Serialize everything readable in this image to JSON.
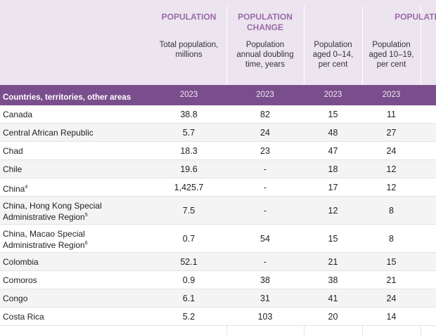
{
  "table": {
    "groups": [
      [
        "POPULATION"
      ],
      [
        "POPULATION",
        "CHANGE"
      ],
      [
        "POPULATION"
      ]
    ],
    "subheaders": [
      [
        "Total population,",
        "millions"
      ],
      [
        "Population",
        "annual doubling",
        "time, years"
      ],
      [
        "Population",
        "aged 0–14,",
        "per cent"
      ],
      [
        "Population",
        "aged 10–19,",
        "per cent"
      ]
    ],
    "row_header": "Countries, territories, other areas",
    "years": [
      "2023",
      "2023",
      "2023",
      "2023"
    ],
    "rows": [
      {
        "name": [
          "Canada"
        ],
        "values": [
          38.8,
          82,
          15,
          11
        ]
      },
      {
        "name": [
          "Central African Republic"
        ],
        "values": [
          5.7,
          24,
          48,
          27
        ]
      },
      {
        "name": [
          "Chad"
        ],
        "values": [
          18.3,
          23,
          47,
          24
        ]
      },
      {
        "name": [
          "Chile"
        ],
        "values": [
          19.6,
          "-",
          18,
          12
        ]
      },
      {
        "name": [
          "China"
        ],
        "note": "4",
        "values": [
          "1,425.7",
          "-",
          17,
          12
        ]
      },
      {
        "name": [
          "China, Hong Kong Special",
          "Administrative Region"
        ],
        "note": "5",
        "values": [
          7.5,
          "-",
          12,
          8
        ]
      },
      {
        "name": [
          "China, Macao Special",
          "Administrative Region"
        ],
        "note": "6",
        "values": [
          0.7,
          54,
          15,
          8
        ]
      },
      {
        "name": [
          "Colombia"
        ],
        "values": [
          52.1,
          "-",
          21,
          15
        ]
      },
      {
        "name": [
          "Comoros"
        ],
        "values": [
          0.9,
          38,
          38,
          21
        ]
      },
      {
        "name": [
          "Congo"
        ],
        "values": [
          6.1,
          31,
          41,
          24
        ]
      },
      {
        "name": [
          "Costa Rica"
        ],
        "values": [
          5.2,
          103,
          20,
          14
        ]
      }
    ]
  }
}
